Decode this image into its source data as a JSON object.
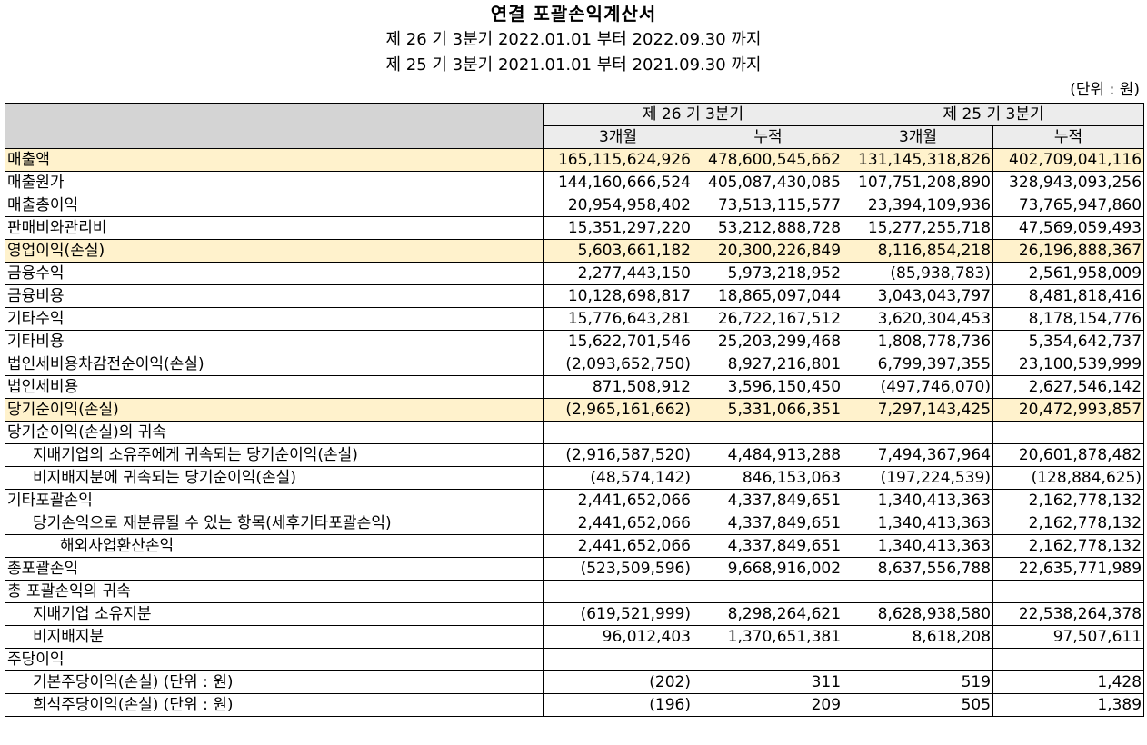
{
  "header": {
    "title": "연결 포괄손익계산서",
    "period_current": "제 26 기 3분기 2022.01.01 부터 2022.09.30 까지",
    "period_prior": "제 25 기 3분기 2021.01.01 부터 2021.09.30 까지",
    "unit": "(단위 : 원)"
  },
  "table": {
    "period_headers": [
      "제 26 기 3분기",
      "제 25 기 3분기"
    ],
    "sub_headers": [
      "3개월",
      "누적",
      "3개월",
      "누적"
    ],
    "highlight_color": "#fff2cc",
    "rows": [
      {
        "label": "매출액",
        "values": [
          "165,115,624,926",
          "478,600,545,662",
          "131,145,318,826",
          "402,709,041,116"
        ],
        "highlight": true,
        "indent": 0
      },
      {
        "label": "매출원가",
        "values": [
          "144,160,666,524",
          "405,087,430,085",
          "107,751,208,890",
          "328,943,093,256"
        ],
        "highlight": false,
        "indent": 0
      },
      {
        "label": "매출총이익",
        "values": [
          "20,954,958,402",
          "73,513,115,577",
          "23,394,109,936",
          "73,765,947,860"
        ],
        "highlight": false,
        "indent": 0
      },
      {
        "label": "판매비와관리비",
        "values": [
          "15,351,297,220",
          "53,212,888,728",
          "15,277,255,718",
          "47,569,059,493"
        ],
        "highlight": false,
        "indent": 0
      },
      {
        "label": "영업이익(손실)",
        "values": [
          "5,603,661,182",
          "20,300,226,849",
          "8,116,854,218",
          "26,196,888,367"
        ],
        "highlight": true,
        "indent": 0
      },
      {
        "label": "금융수익",
        "values": [
          "2,277,443,150",
          "5,973,218,952",
          "(85,938,783)",
          "2,561,958,009"
        ],
        "highlight": false,
        "indent": 0
      },
      {
        "label": "금융비용",
        "values": [
          "10,128,698,817",
          "18,865,097,044",
          "3,043,043,797",
          "8,481,818,416"
        ],
        "highlight": false,
        "indent": 0
      },
      {
        "label": "기타수익",
        "values": [
          "15,776,643,281",
          "26,722,167,512",
          "3,620,304,453",
          "8,178,154,776"
        ],
        "highlight": false,
        "indent": 0
      },
      {
        "label": "기타비용",
        "values": [
          "15,622,701,546",
          "25,203,299,468",
          "1,808,778,736",
          "5,354,642,737"
        ],
        "highlight": false,
        "indent": 0
      },
      {
        "label": "법인세비용차감전순이익(손실)",
        "values": [
          "(2,093,652,750)",
          "8,927,216,801",
          "6,799,397,355",
          "23,100,539,999"
        ],
        "highlight": false,
        "indent": 0
      },
      {
        "label": "법인세비용",
        "values": [
          "871,508,912",
          "3,596,150,450",
          "(497,746,070)",
          "2,627,546,142"
        ],
        "highlight": false,
        "indent": 0
      },
      {
        "label": "당기순이익(손실)",
        "values": [
          "(2,965,161,662)",
          "5,331,066,351",
          "7,297,143,425",
          "20,472,993,857"
        ],
        "highlight": true,
        "indent": 0
      },
      {
        "label": "당기순이익(손실)의 귀속",
        "values": [
          "",
          "",
          "",
          ""
        ],
        "highlight": false,
        "indent": 0
      },
      {
        "label": "지배기업의 소유주에게 귀속되는 당기순이익(손실)",
        "values": [
          "(2,916,587,520)",
          "4,484,913,288",
          "7,494,367,964",
          "20,601,878,482"
        ],
        "highlight": false,
        "indent": 1
      },
      {
        "label": "비지배지분에 귀속되는 당기순이익(손실)",
        "values": [
          "(48,574,142)",
          "846,153,063",
          "(197,224,539)",
          "(128,884,625)"
        ],
        "highlight": false,
        "indent": 1
      },
      {
        "label": "기타포괄손익",
        "values": [
          "2,441,652,066",
          "4,337,849,651",
          "1,340,413,363",
          "2,162,778,132"
        ],
        "highlight": false,
        "indent": 0
      },
      {
        "label": "당기손익으로 재분류될 수 있는 항목(세후기타포괄손익)",
        "values": [
          "2,441,652,066",
          "4,337,849,651",
          "1,340,413,363",
          "2,162,778,132"
        ],
        "highlight": false,
        "indent": 1
      },
      {
        "label": "해외사업환산손익",
        "values": [
          "2,441,652,066",
          "4,337,849,651",
          "1,340,413,363",
          "2,162,778,132"
        ],
        "highlight": false,
        "indent": 2
      },
      {
        "label": "총포괄손익",
        "values": [
          "(523,509,596)",
          "9,668,916,002",
          "8,637,556,788",
          "22,635,771,989"
        ],
        "highlight": false,
        "indent": 0
      },
      {
        "label": "총 포괄손익의 귀속",
        "values": [
          "",
          "",
          "",
          ""
        ],
        "highlight": false,
        "indent": 0
      },
      {
        "label": "지배기업 소유지분",
        "values": [
          "(619,521,999)",
          "8,298,264,621",
          "8,628,938,580",
          "22,538,264,378"
        ],
        "highlight": false,
        "indent": 1
      },
      {
        "label": "비지배지분",
        "values": [
          "96,012,403",
          "1,370,651,381",
          "8,618,208",
          "97,507,611"
        ],
        "highlight": false,
        "indent": 1
      },
      {
        "label": "주당이익",
        "values": [
          "",
          "",
          "",
          ""
        ],
        "highlight": false,
        "indent": 0
      },
      {
        "label": "기본주당이익(손실) (단위 : 원)",
        "values": [
          "(202)",
          "311",
          "519",
          "1,428"
        ],
        "highlight": false,
        "indent": 1
      },
      {
        "label": "희석주당이익(손실) (단위 : 원)",
        "values": [
          "(196)",
          "209",
          "505",
          "1,389"
        ],
        "highlight": false,
        "indent": 1
      }
    ]
  }
}
